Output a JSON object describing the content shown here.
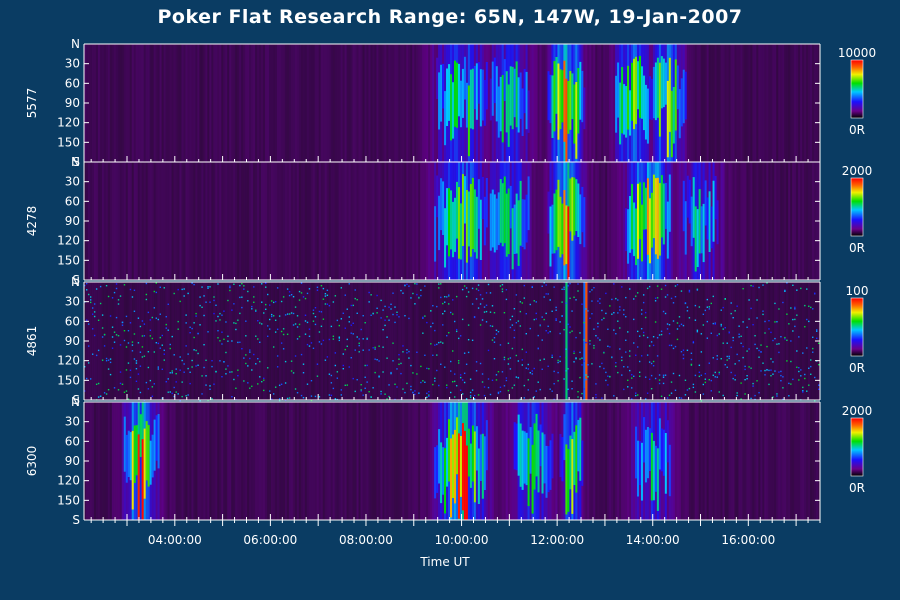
{
  "title": "Poker Flat Research Range: 65N, 147W, 19-Jan-2007",
  "colors": {
    "background": "#0a3c63",
    "panel_base": "#2a0a36"
  },
  "chart_data": {
    "type": "heatmap",
    "title": "Poker Flat Research Range: 65N, 147W, 19-Jan-2007",
    "xlabel": "Time UT",
    "x_ticks": [
      "04:00:00",
      "06:00:00",
      "08:00:00",
      "10:00:00",
      "12:00:00",
      "14:00:00",
      "16:00:00"
    ],
    "x_tick_hours": [
      4,
      6,
      8,
      10,
      12,
      14,
      16
    ],
    "xlim_hours": [
      2.1,
      17.5
    ],
    "y_ticks": [
      "N",
      "30",
      "60",
      "90",
      "120",
      "150",
      "S"
    ],
    "y_tick_values": [
      0,
      30,
      60,
      90,
      120,
      150,
      180
    ],
    "ylim": [
      0,
      180
    ],
    "panels": [
      {
        "name": "5577",
        "scale_max": "10000",
        "scale_min": "0R",
        "activity": [
          {
            "center": 10.0,
            "width": 0.6,
            "intensity": 0.55
          },
          {
            "center": 11.0,
            "width": 0.5,
            "intensity": 0.5
          },
          {
            "center": 12.2,
            "width": 0.35,
            "intensity": 0.85
          },
          {
            "center": 13.6,
            "width": 0.4,
            "intensity": 0.7
          },
          {
            "center": 14.3,
            "width": 0.4,
            "intensity": 0.65
          }
        ]
      },
      {
        "name": "4278",
        "scale_max": "2000",
        "scale_min": "0R",
        "activity": [
          {
            "center": 10.0,
            "width": 0.6,
            "intensity": 0.6
          },
          {
            "center": 11.0,
            "width": 0.5,
            "intensity": 0.5
          },
          {
            "center": 12.2,
            "width": 0.35,
            "intensity": 0.9
          },
          {
            "center": 13.9,
            "width": 0.45,
            "intensity": 0.85
          },
          {
            "center": 15.0,
            "width": 0.5,
            "intensity": 0.45
          }
        ]
      },
      {
        "name": "4861",
        "scale_max": "100",
        "scale_min": "0R",
        "activity": [
          {
            "center": 12.6,
            "width": 0.03,
            "intensity": 1.0
          },
          {
            "center": 12.2,
            "width": 0.04,
            "intensity": 0.5
          }
        ]
      },
      {
        "name": "6300",
        "scale_max": "2000",
        "scale_min": "0R",
        "activity": [
          {
            "center": 3.3,
            "width": 0.35,
            "intensity": 0.85
          },
          {
            "center": 10.0,
            "width": 0.5,
            "intensity": 0.9
          },
          {
            "center": 11.5,
            "width": 0.5,
            "intensity": 0.5
          },
          {
            "center": 12.3,
            "width": 0.25,
            "intensity": 0.65
          },
          {
            "center": 14.0,
            "width": 0.5,
            "intensity": 0.45
          }
        ]
      }
    ],
    "grid": false,
    "legend_placement": "right of each panel"
  }
}
